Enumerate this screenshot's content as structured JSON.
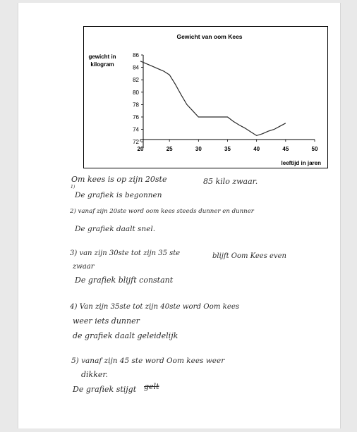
{
  "chart_data": {
    "type": "line",
    "title": "Gewicht van oom Kees",
    "ylabel_line1": "gewicht in",
    "ylabel_line2": "kilogram",
    "xlabel": "leeftijd in jaren",
    "xlim": [
      20,
      50
    ],
    "ylim": [
      71,
      86
    ],
    "x_ticks": [
      20,
      25,
      30,
      35,
      40,
      45,
      50
    ],
    "y_ticks": [
      72,
      74,
      76,
      78,
      80,
      82,
      84,
      86
    ],
    "grid": false,
    "series": [
      {
        "x": [
          20,
          21,
          22,
          23,
          24,
          25,
          26,
          27,
          28,
          29,
          30,
          31,
          32,
          33,
          34,
          35,
          36,
          37,
          38,
          39,
          40,
          41,
          42,
          43,
          44,
          45
        ],
        "y": [
          85,
          84.6,
          84.2,
          83.8,
          83.4,
          82.8,
          81.3,
          79.6,
          78,
          77,
          76,
          76,
          76,
          76,
          76,
          76,
          75.3,
          74.7,
          74.2,
          73.6,
          73,
          73.3,
          73.7,
          74,
          74.5,
          75
        ]
      }
    ],
    "line_color": "#2a2a2a"
  },
  "handwriting": {
    "l1a": "Om kees is op zijn 20ste",
    "l1b": "85  kilo zwaar.",
    "l1num": "1)",
    "l2": "De grafiek is begonnen",
    "l3": "2) vanaf zijn 20ste word oom kees steeds dunner en dunner",
    "l4": "De grafiek daalt snel.",
    "l5a": "3) van zijn 30ste tot zijn 35 ste",
    "l5b": "blijft Oom Kees even",
    "l6": "zwaar",
    "l7": "De grafiek blijft constant",
    "l8": "4) Van zijn 35ste tot zijn 40ste word Oom kees",
    "l9": "weer iets dunner",
    "l10": "de grafiek daalt geleidelijk",
    "l11": "5) vanaf zijn 45 ste  word Oom kees weer",
    "l12": "dikker.",
    "l13": "De grafiek stijgt",
    "l13strike": "gelt"
  }
}
